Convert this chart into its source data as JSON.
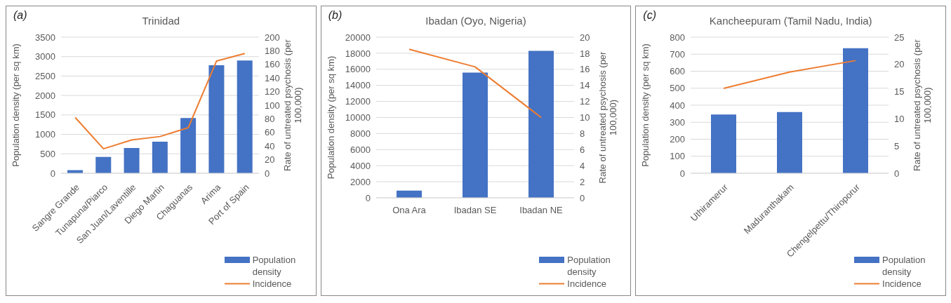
{
  "chart_data": [
    {
      "type": "bar",
      "title": "Trinidad",
      "annotations": [
        "(a)"
      ],
      "xlabel": null,
      "ylabel": "Population density (per sq km)",
      "y2label": "Rate of untreated psychosis (per 100,000)",
      "categories": [
        "Sangre Grande",
        "Tunapuna/Piarco",
        "San Juan/Laventille",
        "Diego Martin",
        "Chaguanas",
        "Arima",
        "Port of Spain"
      ],
      "series": [
        {
          "name": "Population density",
          "color": "#4472c4",
          "values": [
            80,
            420,
            650,
            810,
            1420,
            2780,
            2900
          ]
        },
        {
          "name": "Incidence",
          "type": "line",
          "axis": "y2",
          "color": "#ed7d31",
          "values": [
            82,
            36,
            49,
            54,
            67,
            165,
            176
          ]
        }
      ],
      "ylim": [
        0,
        3500
      ],
      "yticks": [
        0,
        500,
        1000,
        1500,
        2000,
        2500,
        3000,
        3500
      ],
      "y2lim": [
        0,
        200
      ],
      "y2ticks": [
        0,
        20,
        40,
        60,
        80,
        100,
        120,
        140,
        160,
        180,
        200
      ],
      "grid": "y",
      "legend": "bottom right",
      "marker": "none",
      "line_style": "solid"
    },
    {
      "type": "bar",
      "title": "Ibadan (Oyo, Nigeria)",
      "annotations": [
        "(b)"
      ],
      "ylabel": "Population density (per sq km)",
      "y2label": "Rate of untreated psychosis (per 100,000)",
      "categories": [
        "Ona Ara",
        "Ibadan SE",
        "Ibadan NE"
      ],
      "series": [
        {
          "name": "Population density",
          "color": "#4472c4",
          "values": [
            900,
            15600,
            18300
          ]
        },
        {
          "name": "Incidence",
          "type": "line",
          "axis": "y2",
          "color": "#ed7d31",
          "values": [
            18.5,
            16.3,
            10
          ]
        }
      ],
      "ylim": [
        0,
        20000
      ],
      "yticks": [
        0,
        2000,
        4000,
        6000,
        8000,
        10000,
        12000,
        14000,
        16000,
        18000,
        20000
      ],
      "y2lim": [
        0,
        20
      ],
      "y2ticks": [
        0,
        2,
        4,
        6,
        8,
        10,
        12,
        14,
        16,
        18,
        20
      ],
      "grid": "y",
      "legend": "bottom right",
      "marker": "none",
      "line_style": "solid"
    },
    {
      "type": "bar",
      "title": "Kancheepuram (Tamil Nadu, India)",
      "annotations": [
        "(c)"
      ],
      "ylabel": "Population density (per sq km)",
      "y2label": "Rate of untreated psychosis (per 100,000)",
      "categories": [
        "Uthiramerur",
        "Maduranthakam",
        "Chengelpettu/Thiroporur"
      ],
      "series": [
        {
          "name": "Population density",
          "color": "#4472c4",
          "values": [
            345,
            360,
            735
          ]
        },
        {
          "name": "Incidence",
          "type": "line",
          "axis": "y2",
          "color": "#ed7d31",
          "values": [
            15.6,
            18.6,
            20.7
          ]
        }
      ],
      "ylim": [
        0,
        800
      ],
      "yticks": [
        0,
        100,
        200,
        300,
        400,
        500,
        600,
        700,
        800
      ],
      "y2lim": [
        0,
        25
      ],
      "y2ticks": [
        0,
        5,
        10,
        15,
        20,
        25
      ],
      "grid": "y",
      "legend": "bottom right",
      "marker": "none",
      "line_style": "solid"
    }
  ]
}
